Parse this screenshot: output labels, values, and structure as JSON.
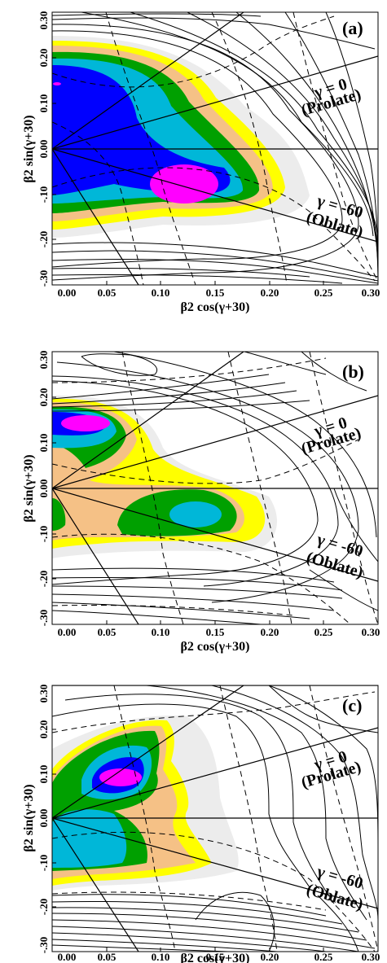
{
  "chart_data": [
    {
      "type": "contour",
      "panel_label": "(a)",
      "xlabel": "β2 cos(γ+30)",
      "ylabel": "β2 sin(γ+30)",
      "xlim": [
        0.0,
        0.3
      ],
      "ylim": [
        -0.3,
        0.3
      ],
      "x_ticks": [
        "0.00",
        "0.05",
        "0.10",
        "0.15",
        "0.20",
        "0.25",
        "0.30"
      ],
      "y_ticks": [
        "-.30",
        "-.20",
        "-.10",
        "0.00",
        "0.10",
        "0.20",
        "0.30"
      ],
      "annotations": [
        "γ = 0",
        "(Prolate)",
        "γ = -60",
        "(Oblate)"
      ],
      "minima": [
        {
          "x": 0.12,
          "y": -0.08
        },
        {
          "x": 0.01,
          "y": 0.15
        }
      ],
      "fill_extent_x": 0.25
    },
    {
      "type": "contour",
      "panel_label": "(b)",
      "xlabel": "β2 cos(γ+30)",
      "ylabel": "β2 sin(γ+30)",
      "xlim": [
        0.0,
        0.3
      ],
      "ylim": [
        -0.3,
        0.3
      ],
      "x_ticks": [
        "0.00",
        "0.05",
        "0.10",
        "0.15",
        "0.20",
        "0.25",
        "0.30"
      ],
      "y_ticks": [
        "-.30",
        "-.20",
        "-.10",
        "0.00",
        "0.10",
        "0.20",
        "0.30"
      ],
      "annotations": [
        "γ = 0",
        "(Prolate)",
        "γ = -60",
        "(Oblate)"
      ],
      "minima": [
        {
          "x": 0.05,
          "y": 0.13
        },
        {
          "x": 0.13,
          "y": -0.08
        }
      ],
      "fill_extent_x": 0.2
    },
    {
      "type": "contour",
      "panel_label": "(c)",
      "xlabel": "β2 cos(γ+30)",
      "ylabel": "β2 sin(γ+30)",
      "xlim": [
        0.0,
        0.3
      ],
      "ylim": [
        -0.3,
        0.3
      ],
      "x_ticks": [
        "0.00",
        "0.05",
        "0.10",
        "0.15",
        "0.20",
        "0.25",
        "0.30"
      ],
      "y_ticks": [
        "-.30",
        "-.20",
        "-.10",
        "0.00",
        "0.10",
        "0.20",
        "0.30"
      ],
      "annotations": [
        "γ = 0",
        "(Prolate)",
        "γ = -60",
        "(Oblate)"
      ],
      "minima": [
        {
          "x": 0.06,
          "y": 0.11
        },
        {
          "x": 0.02,
          "y": -0.05
        }
      ],
      "fill_extent_x": 0.18
    }
  ],
  "colors": {
    "level_1": "#ff00ff",
    "level_2": "#0000ff",
    "level_3": "#00b7d8",
    "level_4": "#00a000",
    "level_5": "#f5c186",
    "level_6": "#ffff00",
    "level_7": "#ececec",
    "line": "#000000"
  }
}
